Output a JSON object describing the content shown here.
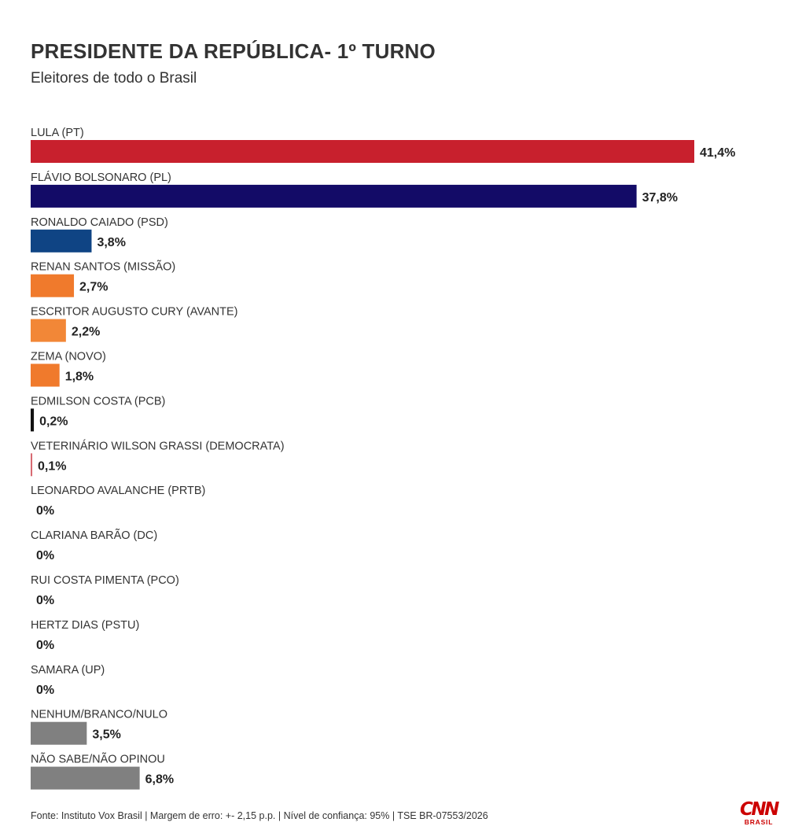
{
  "chart_data": {
    "type": "bar",
    "orientation": "horizontal",
    "title": "PRESIDENTE DA REPÚBLICA- 1º TURNO",
    "subtitle": "Eleitores de todo o Brasil",
    "categories": [
      "LULA (PT)",
      "FLÁVIO BOLSONARO (PL)",
      "RONALDO CAIADO (PSD)",
      "RENAN SANTOS (MISSÃO)",
      "ESCRITOR AUGUSTO CURY (AVANTE)",
      "ZEMA (NOVO)",
      "EDMILSON COSTA (PCB)",
      "VETERINÁRIO WILSON GRASSI (DEMOCRATA)",
      "LEONARDO AVALANCHE (PRTB)",
      "CLARIANA BARÃO (DC)",
      "RUI COSTA PIMENTA (PCO)",
      "HERTZ DIAS (PSTU)",
      "SAMARA (UP)",
      "NENHUM/BRANCO/NULO",
      "NÃO SABE/NÃO OPINOU"
    ],
    "values": [
      41.4,
      37.8,
      3.8,
      2.7,
      2.2,
      1.8,
      0.2,
      0.1,
      0,
      0,
      0,
      0,
      0,
      3.5,
      6.8
    ],
    "value_labels": [
      "41,4%",
      "37,8%",
      "3,8%",
      "2,7%",
      "2,2%",
      "1,8%",
      "0,2%",
      "0,1%",
      "0%",
      "0%",
      "0%",
      "0%",
      "0%",
      "3,5%",
      "6,8%"
    ],
    "colors": [
      "#c8202d",
      "#130b67",
      "#0f4484",
      "#f07a2c",
      "#f28737",
      "#f07a2c",
      "#111111",
      "#d86a72",
      "#888888",
      "#888888",
      "#888888",
      "#888888",
      "#888888",
      "#808080",
      "#808080"
    ],
    "xlim": [
      0,
      41.4
    ],
    "grid": false,
    "legend": "none"
  },
  "footer": {
    "source": "Fonte: Instituto Vox Brasil | Margem de erro: +- 2,15 p.p. | Nível de confiança: 95% | TSE BR-07553/2026"
  },
  "brand": {
    "logo": "CNN",
    "logo_sub": "BRASIL",
    "color": "#cc0000"
  }
}
